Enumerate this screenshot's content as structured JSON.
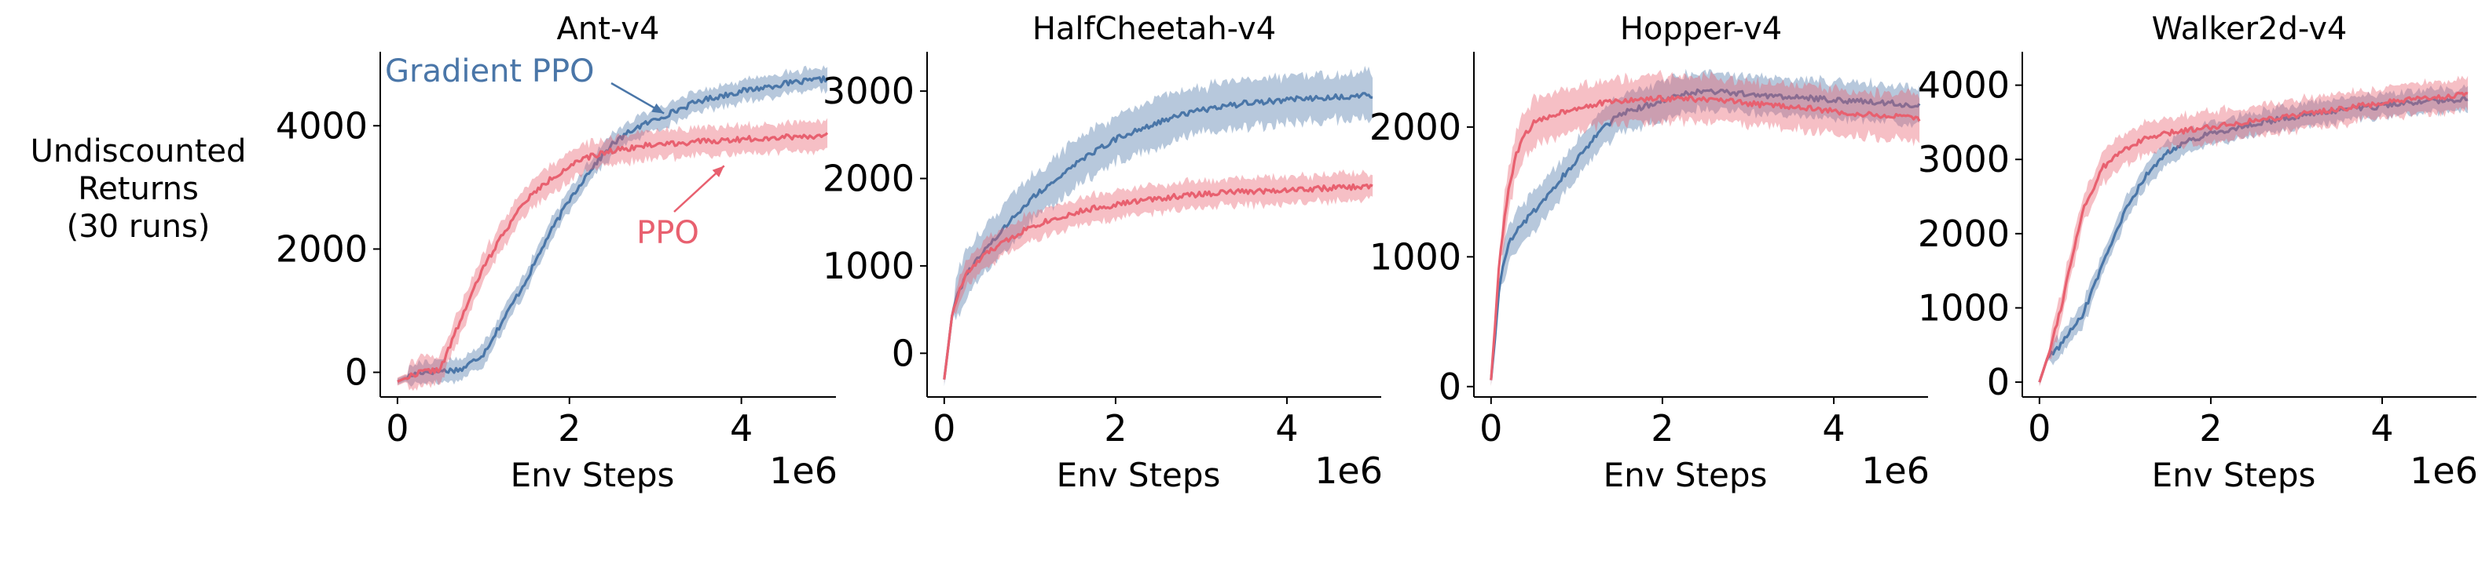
{
  "figure": {
    "ylabel_lines": [
      "Undiscounted",
      "Returns",
      "(30 runs)"
    ],
    "xlabel": "Env Steps",
    "x_offset_label": "1e6",
    "colors": {
      "gradient_ppo": "#4a76a8",
      "ppo": "#e8606f",
      "axis": "#000000"
    }
  },
  "chart_data": [
    {
      "type": "line",
      "title": "Ant-v4",
      "xlabel": "Env Steps",
      "x_offset": "1e6",
      "xlim": [
        -0.2,
        5.1
      ],
      "ylim": [
        -400,
        5200
      ],
      "xticks": [
        0,
        2,
        4
      ],
      "yticks": [
        0,
        2000,
        4000
      ],
      "annotations": [
        {
          "text": "Gradient PPO",
          "series": "Gradient PPO",
          "target": [
            3.1,
            4200
          ]
        },
        {
          "text": "PPO",
          "series": "PPO",
          "target": [
            3.8,
            3350
          ]
        }
      ],
      "series": [
        {
          "name": "Gradient PPO",
          "x": [
            0,
            0.25,
            0.5,
            0.75,
            1.0,
            1.25,
            1.5,
            1.75,
            2.0,
            2.25,
            2.5,
            2.75,
            3.0,
            3.25,
            3.5,
            3.75,
            4.0,
            4.25,
            4.5,
            4.75,
            5.0
          ],
          "y": [
            -150,
            0,
            20,
            50,
            300,
            900,
            1500,
            2200,
            2800,
            3300,
            3700,
            3950,
            4100,
            4250,
            4400,
            4480,
            4560,
            4620,
            4680,
            4720,
            4760
          ],
          "band": 170
        },
        {
          "name": "PPO",
          "x": [
            0,
            0.25,
            0.5,
            0.75,
            1.0,
            1.25,
            1.5,
            1.75,
            2.0,
            2.25,
            2.5,
            2.75,
            3.0,
            3.25,
            3.5,
            3.75,
            4.0,
            4.25,
            4.5,
            4.75,
            5.0
          ],
          "y": [
            -150,
            0,
            50,
            900,
            1700,
            2300,
            2800,
            3100,
            3350,
            3500,
            3600,
            3650,
            3700,
            3720,
            3740,
            3760,
            3780,
            3800,
            3820,
            3830,
            3840
          ],
          "band": 220
        }
      ]
    },
    {
      "type": "line",
      "title": "HalfCheetah-v4",
      "xlabel": "Env Steps",
      "x_offset": "1e6",
      "xlim": [
        -0.2,
        5.1
      ],
      "ylim": [
        -500,
        3450
      ],
      "xticks": [
        0,
        2,
        4
      ],
      "yticks": [
        0,
        1000,
        2000,
        3000
      ],
      "series": [
        {
          "name": "Gradient PPO",
          "x": [
            0,
            0.1,
            0.25,
            0.5,
            0.75,
            1.0,
            1.25,
            1.5,
            1.75,
            2.0,
            2.25,
            2.5,
            2.75,
            3.0,
            3.25,
            3.5,
            3.75,
            4.0,
            4.25,
            4.5,
            4.75,
            5.0
          ],
          "y": [
            -300,
            500,
            900,
            1200,
            1500,
            1750,
            1950,
            2150,
            2300,
            2450,
            2550,
            2650,
            2720,
            2780,
            2820,
            2860,
            2880,
            2900,
            2920,
            2930,
            2940,
            2950
          ],
          "band": 260
        },
        {
          "name": "PPO",
          "x": [
            0,
            0.1,
            0.25,
            0.5,
            0.75,
            1.0,
            1.25,
            1.5,
            1.75,
            2.0,
            2.25,
            2.5,
            2.75,
            3.0,
            3.25,
            3.5,
            3.75,
            4.0,
            4.25,
            4.5,
            4.75,
            5.0
          ],
          "y": [
            -300,
            500,
            900,
            1150,
            1300,
            1450,
            1530,
            1600,
            1660,
            1700,
            1740,
            1770,
            1800,
            1820,
            1840,
            1850,
            1860,
            1870,
            1880,
            1890,
            1900,
            1910
          ],
          "band": 150
        }
      ]
    },
    {
      "type": "line",
      "title": "Hopper-v4",
      "xlabel": "Env Steps",
      "x_offset": "1e6",
      "xlim": [
        -0.2,
        5.1
      ],
      "ylim": [
        -80,
        2580
      ],
      "xticks": [
        0,
        2,
        4
      ],
      "yticks": [
        0,
        1000,
        2000
      ],
      "series": [
        {
          "name": "Gradient PPO",
          "x": [
            0,
            0.05,
            0.1,
            0.2,
            0.3,
            0.4,
            0.5,
            0.75,
            1.0,
            1.25,
            1.5,
            1.75,
            2.0,
            2.25,
            2.5,
            2.75,
            3.0,
            3.25,
            3.5,
            3.75,
            4.0,
            4.25,
            4.5,
            4.75,
            5.0
          ],
          "y": [
            50,
            400,
            800,
            1100,
            1200,
            1280,
            1350,
            1550,
            1750,
            1950,
            2100,
            2150,
            2200,
            2250,
            2280,
            2270,
            2250,
            2240,
            2230,
            2220,
            2210,
            2200,
            2190,
            2180,
            2170
          ],
          "band": 140
        },
        {
          "name": "PPO",
          "x": [
            0,
            0.05,
            0.1,
            0.2,
            0.3,
            0.4,
            0.5,
            0.75,
            1.0,
            1.25,
            1.5,
            1.75,
            2.0,
            2.25,
            2.5,
            2.75,
            3.0,
            3.25,
            3.5,
            3.75,
            4.0,
            4.25,
            4.5,
            4.75,
            5.0
          ],
          "y": [
            50,
            500,
            1000,
            1500,
            1800,
            1950,
            2030,
            2100,
            2150,
            2180,
            2200,
            2210,
            2220,
            2220,
            2210,
            2200,
            2180,
            2170,
            2160,
            2140,
            2120,
            2100,
            2090,
            2080,
            2060
          ],
          "band": 170
        }
      ]
    },
    {
      "type": "line",
      "title": "Walker2d-v4",
      "xlabel": "Env Steps",
      "x_offset": "1e6",
      "xlim": [
        -0.2,
        5.1
      ],
      "ylim": [
        -200,
        4450
      ],
      "xticks": [
        0,
        2,
        4
      ],
      "yticks": [
        0,
        1000,
        2000,
        3000,
        4000
      ],
      "series": [
        {
          "name": "Gradient PPO",
          "x": [
            0,
            0.1,
            0.25,
            0.5,
            0.75,
            1.0,
            1.25,
            1.5,
            1.75,
            2.0,
            2.25,
            2.5,
            2.75,
            3.0,
            3.25,
            3.5,
            3.75,
            4.0,
            4.25,
            4.5,
            4.75,
            5.0
          ],
          "y": [
            0,
            350,
            500,
            900,
            1600,
            2300,
            2800,
            3100,
            3250,
            3350,
            3420,
            3480,
            3530,
            3580,
            3620,
            3660,
            3690,
            3720,
            3750,
            3780,
            3800,
            3820
          ],
          "band": 150
        },
        {
          "name": "PPO",
          "x": [
            0,
            0.1,
            0.25,
            0.5,
            0.75,
            1.0,
            1.25,
            1.5,
            1.75,
            2.0,
            2.25,
            2.5,
            2.75,
            3.0,
            3.25,
            3.5,
            3.75,
            4.0,
            4.25,
            4.5,
            4.75,
            5.0
          ],
          "y": [
            0,
            350,
            1000,
            2300,
            2900,
            3150,
            3280,
            3350,
            3400,
            3440,
            3480,
            3520,
            3560,
            3600,
            3640,
            3680,
            3720,
            3760,
            3790,
            3820,
            3850,
            3870
          ],
          "band": 200
        }
      ]
    }
  ]
}
